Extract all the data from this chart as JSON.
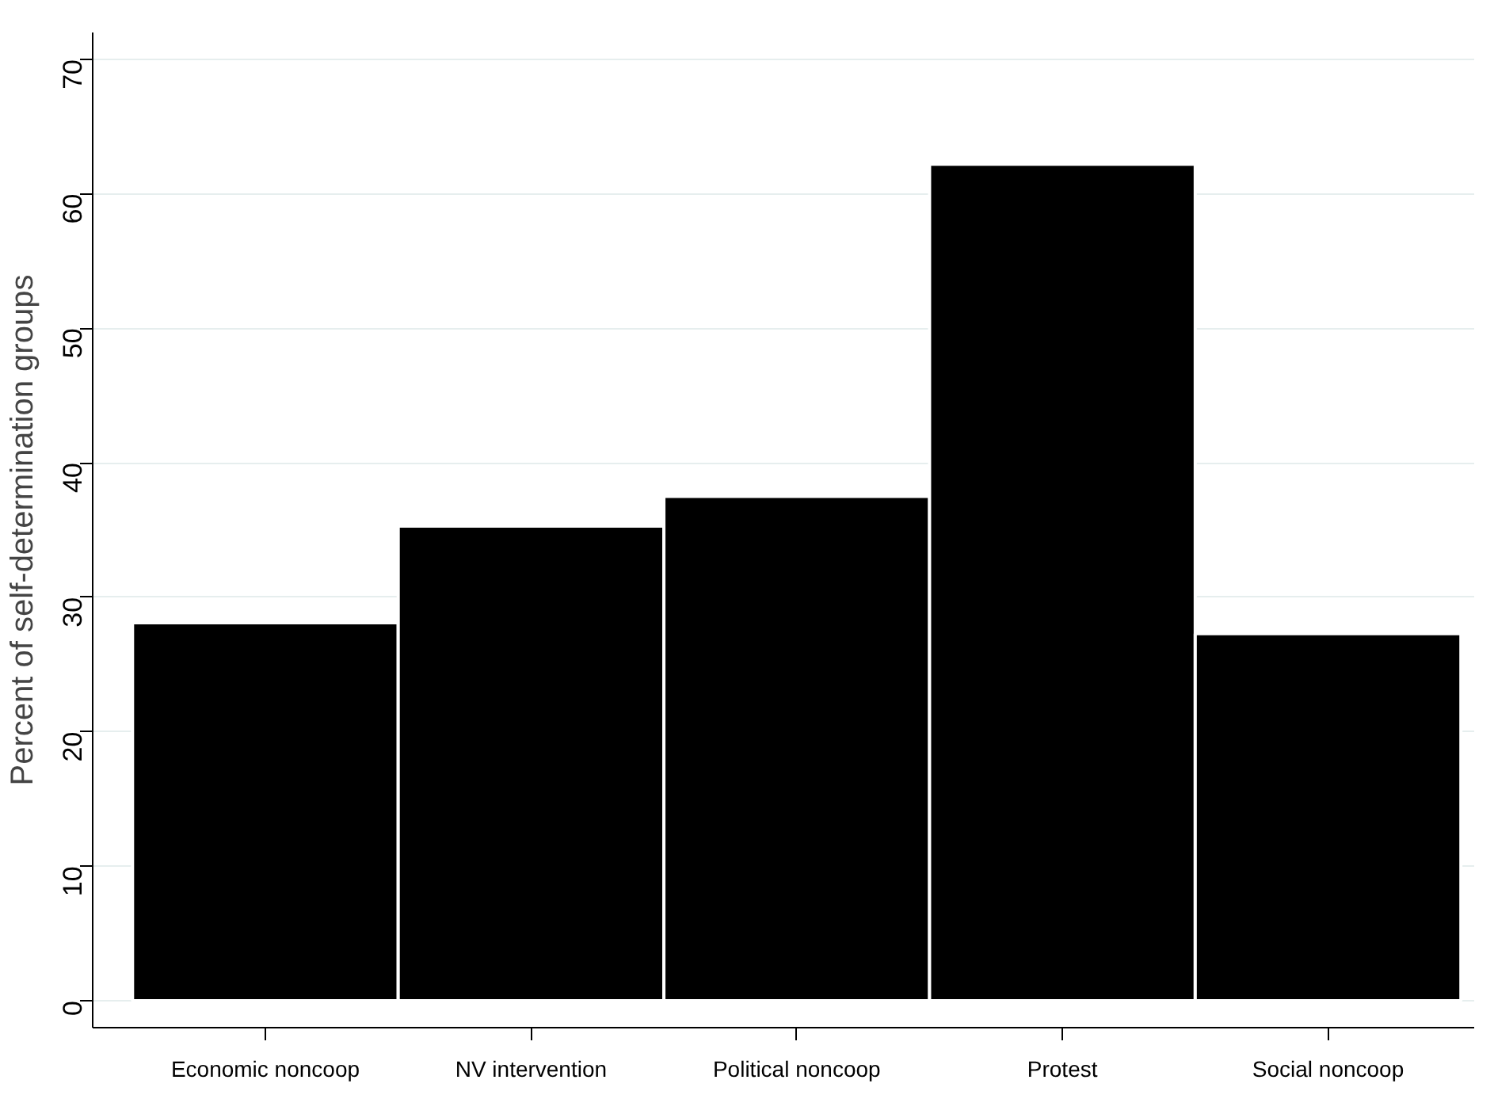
{
  "chart_data": {
    "type": "bar",
    "ylabel": "Percent of self-determination groups",
    "categories": [
      "Economic noncoop",
      "NV intervention",
      "Political noncoop",
      "Protest",
      "Social noncoop"
    ],
    "values": [
      28.1,
      35.3,
      37.5,
      62.2,
      27.3
    ],
    "color": "#000000",
    "ylim": [
      -2,
      72
    ],
    "yticks": [
      0,
      10,
      20,
      30,
      40,
      50,
      60,
      70
    ],
    "grid": "y"
  }
}
